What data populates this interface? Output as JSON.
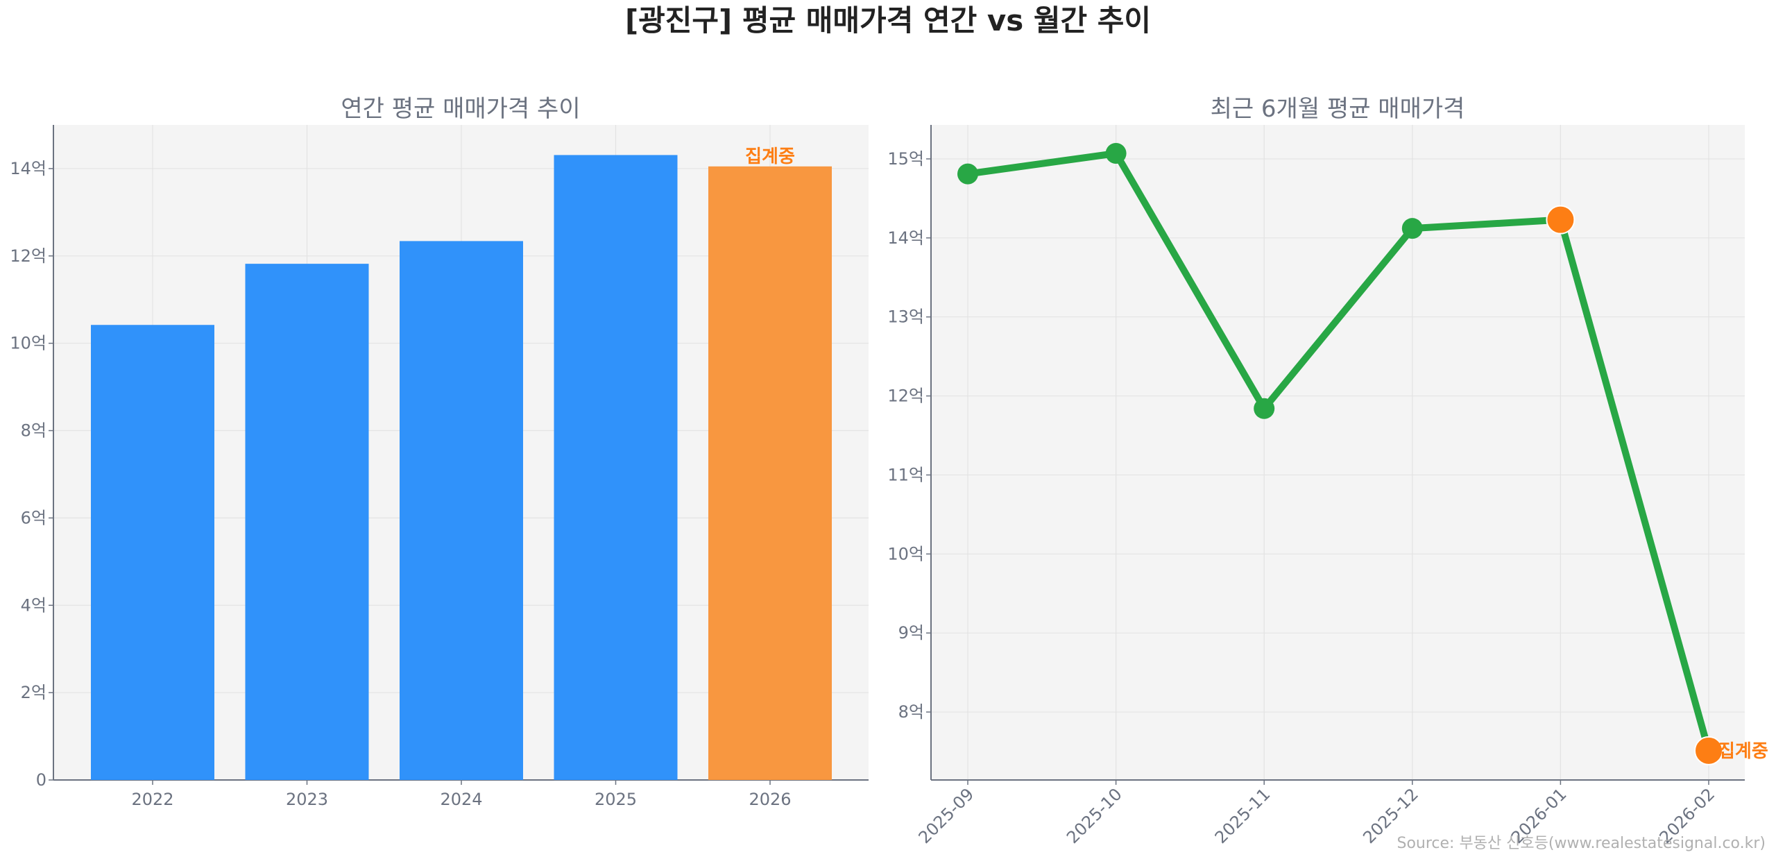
{
  "title": "[광진구] 평균 매매가격 연간 vs 월간 추이",
  "source": "Source: 부동산 신호등(www.realestatesignal.co.kr)",
  "colors": {
    "bar": "#3092fa",
    "bar_partial": "#f89740",
    "line": "#28a745",
    "partial_marker": "#fd7e14",
    "partial_label": "#fd7e14"
  },
  "chart_data": [
    {
      "type": "bar",
      "title": "연간 평균 매매가격 추이",
      "categories": [
        "2022",
        "2023",
        "2024",
        "2025",
        "2026"
      ],
      "values": [
        10.42,
        11.82,
        12.34,
        14.31,
        14.05
      ],
      "ylim": [
        0,
        15
      ],
      "yticks": [
        0,
        2,
        4,
        6,
        8,
        10,
        12,
        14
      ],
      "ytick_labels": [
        "0",
        "2억",
        "4억",
        "6억",
        "8억",
        "10억",
        "12억",
        "14억"
      ],
      "grid": true,
      "annotation": {
        "category": "2026",
        "text": "집계중"
      }
    },
    {
      "type": "line",
      "title": "최근 6개월 평균 매매가격",
      "categories": [
        "2025-09",
        "2025-10",
        "2025-11",
        "2025-12",
        "2026-01",
        "2026-02"
      ],
      "values": [
        14.81,
        15.07,
        11.84,
        14.12,
        14.23,
        7.51
      ],
      "highlighted": [
        "2026-01",
        "2026-02"
      ],
      "ylim": [
        7.14,
        15.43
      ],
      "yticks": [
        8,
        9,
        10,
        11,
        12,
        13,
        14,
        15
      ],
      "ytick_labels": [
        "8억",
        "9억",
        "10억",
        "11억",
        "12억",
        "13억",
        "14억",
        "15억"
      ],
      "grid": true,
      "annotation": {
        "category": "2026-02",
        "text": "집계중"
      }
    }
  ]
}
